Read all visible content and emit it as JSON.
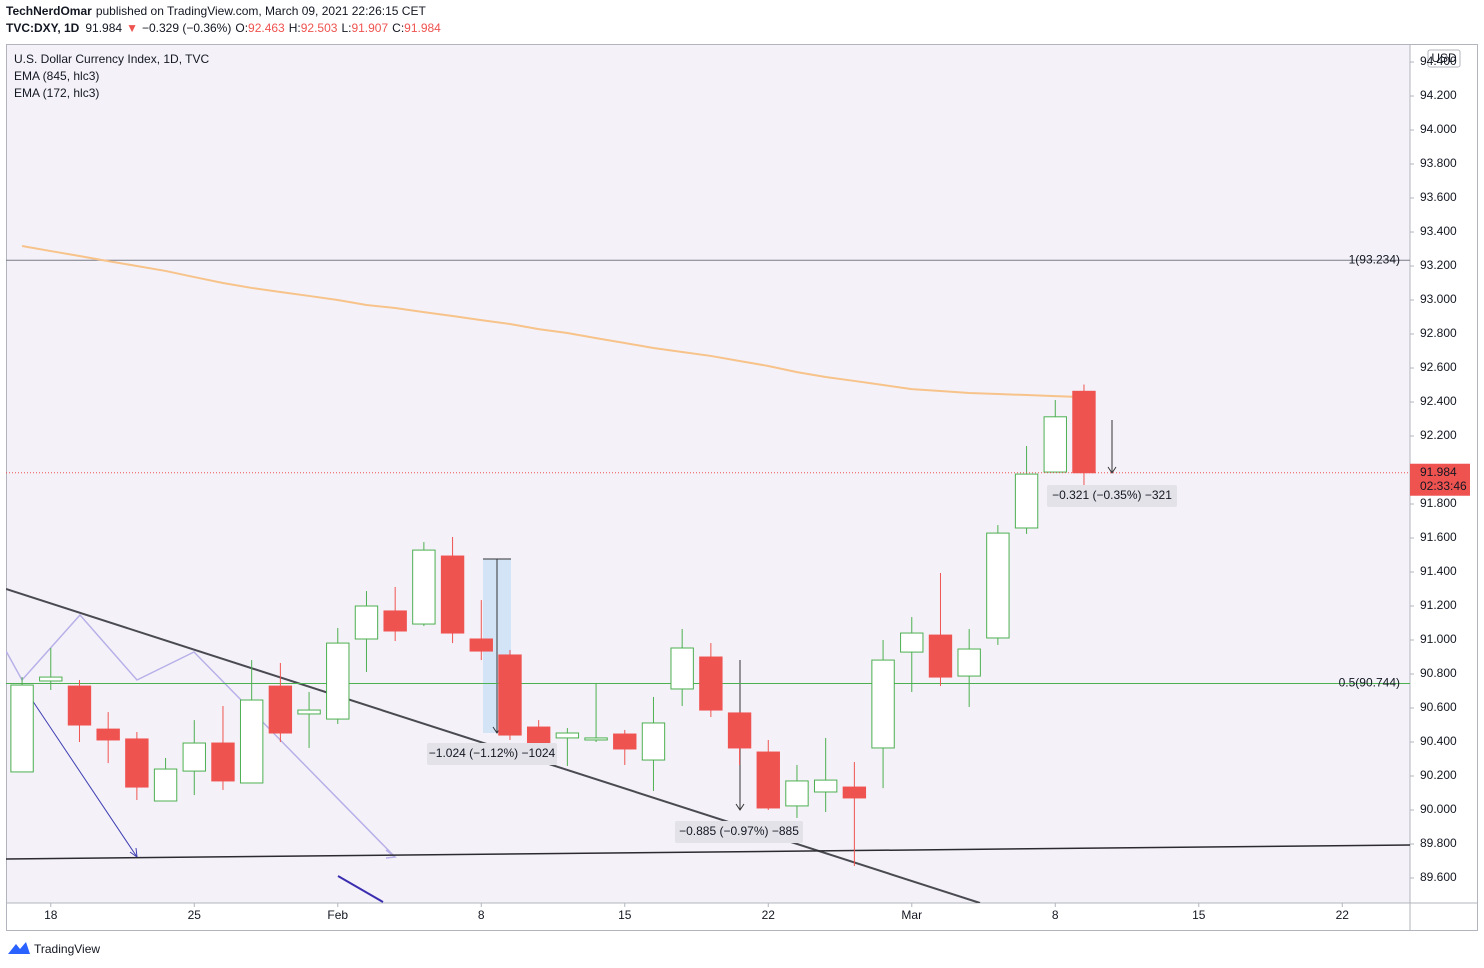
{
  "header": {
    "author": "TechNerdOmar",
    "published": "published on TradingView.com, March 09, 2021 22:26:15 CET",
    "symbol": "TVC:DXY, 1D",
    "last": "91.984",
    "arrow": "▼",
    "change": "−0.329 (−0.36%)",
    "ohlc": [
      {
        "label": "O:",
        "value": "92.463"
      },
      {
        "label": "H:",
        "value": "92.503"
      },
      {
        "label": "L:",
        "value": "91.907"
      },
      {
        "label": "C:",
        "value": "91.984"
      }
    ]
  },
  "chart_data": {
    "type": "candlestick",
    "title": "U.S. Dollar Currency Index, 1D, TVC",
    "x": [
      0,
      1,
      2,
      3,
      4,
      5,
      6,
      7,
      8,
      9,
      10,
      11,
      12,
      13,
      14,
      15,
      16,
      17,
      18,
      19,
      20,
      21,
      22,
      23,
      24,
      25,
      26,
      27,
      28,
      29,
      30,
      31,
      32,
      33,
      34,
      35,
      36,
      37
    ],
    "open": [
      90.224,
      90.759,
      90.729,
      90.476,
      90.418,
      90.053,
      90.229,
      90.394,
      90.159,
      90.729,
      90.565,
      90.535,
      91.006,
      91.171,
      91.094,
      91.494,
      91.006,
      90.912,
      90.488,
      90.424,
      90.412,
      90.447,
      90.294,
      90.712,
      90.9,
      90.571,
      90.341,
      90.024,
      90.106,
      90.135,
      90.365,
      90.929,
      91.029,
      90.788,
      91.012,
      91.659,
      91.988,
      92.463
    ],
    "high": [
      90.782,
      90.953,
      90.765,
      90.576,
      90.459,
      90.306,
      90.529,
      90.612,
      90.882,
      90.865,
      90.694,
      91.071,
      91.288,
      91.312,
      91.576,
      91.606,
      91.235,
      90.941,
      90.529,
      90.482,
      90.747,
      90.471,
      90.665,
      91.065,
      90.982,
      90.576,
      90.412,
      90.265,
      90.424,
      90.282,
      91.0,
      91.135,
      91.394,
      91.065,
      91.676,
      92.141,
      92.412,
      92.503
    ],
    "low": [
      90.224,
      90.706,
      90.4,
      90.276,
      90.059,
      90.053,
      90.088,
      90.118,
      90.159,
      90.4,
      90.365,
      90.506,
      90.812,
      90.994,
      91.082,
      90.982,
      90.882,
      90.412,
      90.265,
      90.259,
      90.4,
      90.265,
      90.112,
      90.612,
      90.547,
      90.265,
      90.0,
      89.953,
      89.988,
      89.671,
      90.129,
      90.694,
      90.729,
      90.606,
      90.971,
      91.624,
      91.988,
      91.907
    ],
    "close": [
      90.735,
      90.782,
      90.5,
      90.412,
      90.135,
      90.241,
      90.394,
      90.171,
      90.647,
      90.453,
      90.588,
      90.982,
      91.2,
      91.053,
      91.529,
      91.041,
      90.935,
      90.441,
      90.376,
      90.453,
      90.424,
      90.359,
      90.512,
      90.953,
      90.588,
      90.365,
      90.012,
      90.171,
      90.176,
      90.071,
      90.882,
      91.041,
      90.782,
      90.947,
      91.629,
      91.976,
      92.313,
      91.984
    ],
    "up_color": "#4caf50",
    "down_color": "#ef5350",
    "indicators": [
      {
        "name": "EMA (845, hlc3)"
      },
      {
        "name": "EMA (172, hlc3)",
        "color": "#f7c38a",
        "values": [
          93.318,
          93.288,
          93.259,
          93.229,
          93.2,
          93.171,
          93.135,
          93.1,
          93.071,
          93.047,
          93.024,
          93.0,
          92.971,
          92.953,
          92.929,
          92.906,
          92.882,
          92.859,
          92.829,
          92.806,
          92.776,
          92.747,
          92.718,
          92.694,
          92.671,
          92.641,
          92.612,
          92.576,
          92.547,
          92.524,
          92.5,
          92.476,
          92.465,
          92.453,
          92.447,
          92.441,
          92.435,
          92.429
        ]
      }
    ],
    "levels": [
      {
        "value": 93.234,
        "label": "1(93.234)",
        "color": "#787b86"
      },
      {
        "value": 90.744,
        "label": "0.5(90.744)",
        "color": "#4caf50"
      }
    ],
    "last_price": 91.984,
    "last_price_color": "#ef5350",
    "countdown": "02:33:46",
    "currency": "USD",
    "measures": [
      "−1.024 (−1.12%) −1024",
      "−0.885 (−0.97%) −885",
      "−0.321 (−0.35%) −321"
    ],
    "xlim": [
      -0.56,
      48.36
    ],
    "xticks": [
      {
        "value": 1,
        "label": "18"
      },
      {
        "value": 6,
        "label": "25"
      },
      {
        "value": 11,
        "label": "Feb"
      },
      {
        "value": 16,
        "label": "8"
      },
      {
        "value": 21,
        "label": "15"
      },
      {
        "value": 26,
        "label": "22"
      },
      {
        "value": 31,
        "label": "Mar"
      },
      {
        "value": 36,
        "label": "8"
      },
      {
        "value": 41,
        "label": "15"
      },
      {
        "value": 46,
        "label": "22"
      }
    ],
    "ylim": [
      89.453,
      94.506
    ],
    "yticks": [
      {
        "value": 89.6,
        "label": "89.600"
      },
      {
        "value": 89.8,
        "label": "89.800"
      },
      {
        "value": 90.0,
        "label": "90.000"
      },
      {
        "value": 90.2,
        "label": "90.200"
      },
      {
        "value": 90.4,
        "label": "90.400"
      },
      {
        "value": 90.6,
        "label": "90.600"
      },
      {
        "value": 90.8,
        "label": "90.800"
      },
      {
        "value": 91.0,
        "label": "91.000"
      },
      {
        "value": 91.2,
        "label": "91.200"
      },
      {
        "value": 91.4,
        "label": "91.400"
      },
      {
        "value": 91.6,
        "label": "91.600"
      },
      {
        "value": 91.8,
        "label": "91.800"
      },
      {
        "value": 92.0,
        "label": "92.000"
      },
      {
        "value": 92.2,
        "label": "92.200"
      },
      {
        "value": 92.4,
        "label": "92.400"
      },
      {
        "value": 92.6,
        "label": "92.600"
      },
      {
        "value": 92.8,
        "label": "92.800"
      },
      {
        "value": 93.0,
        "label": "93.000"
      },
      {
        "value": 93.2,
        "label": "93.200"
      },
      {
        "value": 93.4,
        "label": "93.400"
      },
      {
        "value": 93.6,
        "label": "93.600"
      },
      {
        "value": 93.8,
        "label": "93.800"
      },
      {
        "value": 94.0,
        "label": "94.000"
      },
      {
        "value": 94.2,
        "label": "94.200"
      },
      {
        "value": 94.4,
        "label": "94.400"
      }
    ]
  },
  "footer": {
    "brand": "TradingView"
  }
}
